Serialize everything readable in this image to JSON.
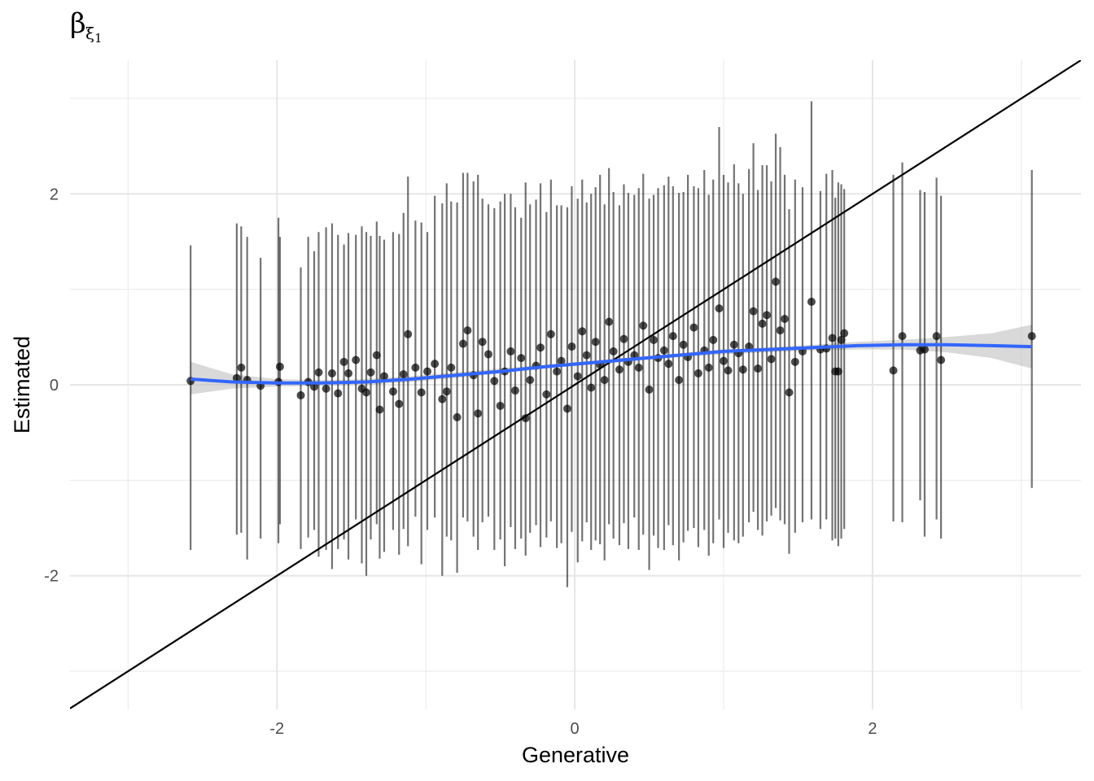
{
  "chart_data": {
    "type": "scatter",
    "title": "β",
    "title_subscript": "ξ",
    "title_subsubscript": "1",
    "xlabel": "Generative",
    "ylabel": "Estimated",
    "xlim": [
      -3.39,
      3.4
    ],
    "ylim": [
      -3.4,
      3.4
    ],
    "x_ticks": [
      -2,
      0,
      2
    ],
    "x_tick_labels": [
      "-2",
      "0",
      "2"
    ],
    "y_ticks": [
      -2,
      0,
      2
    ],
    "y_tick_labels": [
      "-2",
      "0",
      "2"
    ],
    "grid": true,
    "identity_line": {
      "slope": 1,
      "intercept": 0,
      "color": "#000000"
    },
    "smooth": {
      "color": "#3366FF",
      "band_color": "#bfbfbf",
      "x": [
        -2.58,
        -2.3,
        -2.0,
        -1.7,
        -1.4,
        -1.1,
        -0.8,
        -0.5,
        -0.2,
        0.1,
        0.4,
        0.7,
        1.0,
        1.3,
        1.6,
        1.9,
        2.2,
        2.5,
        2.8,
        3.07
      ],
      "y": [
        0.06,
        0.03,
        0.02,
        0.02,
        0.03,
        0.06,
        0.1,
        0.14,
        0.19,
        0.23,
        0.27,
        0.31,
        0.35,
        0.37,
        0.39,
        0.41,
        0.42,
        0.42,
        0.41,
        0.4
      ],
      "lower": [
        -0.1,
        -0.04,
        -0.02,
        -0.01,
        0.0,
        0.03,
        0.07,
        0.12,
        0.17,
        0.21,
        0.25,
        0.29,
        0.32,
        0.34,
        0.36,
        0.37,
        0.37,
        0.34,
        0.28,
        0.17
      ],
      "upper": [
        0.24,
        0.11,
        0.06,
        0.05,
        0.06,
        0.09,
        0.13,
        0.17,
        0.21,
        0.25,
        0.29,
        0.33,
        0.37,
        0.39,
        0.42,
        0.45,
        0.47,
        0.5,
        0.54,
        0.63
      ]
    },
    "series": [
      {
        "color": "#000000",
        "points": [
          {
            "x": -2.58,
            "y": 0.04,
            "lo": -1.73,
            "hi": 1.46
          },
          {
            "x": -2.27,
            "y": 0.07,
            "lo": -1.57,
            "hi": 1.69
          },
          {
            "x": -2.24,
            "y": 0.18,
            "lo": -1.55,
            "hi": 1.66
          },
          {
            "x": -2.2,
            "y": 0.05,
            "lo": -1.83,
            "hi": 1.55
          },
          {
            "x": -2.11,
            "y": -0.01,
            "lo": -1.61,
            "hi": 1.33
          },
          {
            "x": -1.99,
            "y": 0.03,
            "lo": -1.66,
            "hi": 1.75
          },
          {
            "x": -1.98,
            "y": 0.19,
            "lo": -1.46,
            "hi": 1.55
          },
          {
            "x": -1.84,
            "y": -0.11,
            "lo": -1.72,
            "hi": 1.23
          },
          {
            "x": -1.79,
            "y": 0.03,
            "lo": -1.6,
            "hi": 1.55
          },
          {
            "x": -1.75,
            "y": -0.02,
            "lo": -1.52,
            "hi": 1.4
          },
          {
            "x": -1.72,
            "y": 0.13,
            "lo": -1.8,
            "hi": 1.6
          },
          {
            "x": -1.67,
            "y": -0.04,
            "lo": -1.73,
            "hi": 1.65
          },
          {
            "x": -1.63,
            "y": 0.12,
            "lo": -1.93,
            "hi": 1.69
          },
          {
            "x": -1.59,
            "y": -0.09,
            "lo": -1.72,
            "hi": 1.57
          },
          {
            "x": -1.55,
            "y": 0.24,
            "lo": -1.62,
            "hi": 1.47
          },
          {
            "x": -1.52,
            "y": 0.12,
            "lo": -1.83,
            "hi": 1.59
          },
          {
            "x": -1.47,
            "y": 0.26,
            "lo": -1.41,
            "hi": 1.57
          },
          {
            "x": -1.43,
            "y": -0.04,
            "lo": -1.87,
            "hi": 1.66
          },
          {
            "x": -1.4,
            "y": -0.08,
            "lo": -2.0,
            "hi": 1.6
          },
          {
            "x": -1.37,
            "y": 0.13,
            "lo": -1.62,
            "hi": 1.56
          },
          {
            "x": -1.33,
            "y": 0.31,
            "lo": -1.46,
            "hi": 1.71
          },
          {
            "x": -1.31,
            "y": -0.26,
            "lo": -1.82,
            "hi": 1.56
          },
          {
            "x": -1.28,
            "y": 0.09,
            "lo": -1.75,
            "hi": 1.52
          },
          {
            "x": -1.22,
            "y": -0.07,
            "lo": -1.52,
            "hi": 1.6
          },
          {
            "x": -1.18,
            "y": -0.2,
            "lo": -1.78,
            "hi": 1.58
          },
          {
            "x": -1.15,
            "y": 0.11,
            "lo": -1.51,
            "hi": 1.8
          },
          {
            "x": -1.12,
            "y": 0.53,
            "lo": -1.69,
            "hi": 2.18
          },
          {
            "x": -1.07,
            "y": 0.18,
            "lo": -1.38,
            "hi": 1.72
          },
          {
            "x": -1.03,
            "y": -0.08,
            "lo": -1.88,
            "hi": 1.7
          },
          {
            "x": -0.99,
            "y": 0.14,
            "lo": -1.52,
            "hi": 1.6
          },
          {
            "x": -0.94,
            "y": 0.22,
            "lo": -1.39,
            "hi": 1.98
          },
          {
            "x": -0.89,
            "y": -0.15,
            "lo": -2.0,
            "hi": 1.9
          },
          {
            "x": -0.86,
            "y": -0.07,
            "lo": -1.59,
            "hi": 2.11
          },
          {
            "x": -0.83,
            "y": 0.18,
            "lo": -1.63,
            "hi": 1.92
          },
          {
            "x": -0.79,
            "y": -0.34,
            "lo": -1.97,
            "hi": 1.91
          },
          {
            "x": -0.75,
            "y": 0.43,
            "lo": -1.39,
            "hi": 2.22
          },
          {
            "x": -0.72,
            "y": 0.57,
            "lo": -1.43,
            "hi": 2.22
          },
          {
            "x": -0.68,
            "y": 0.1,
            "lo": -1.59,
            "hi": 2.13
          },
          {
            "x": -0.65,
            "y": -0.3,
            "lo": -1.73,
            "hi": 2.2
          },
          {
            "x": -0.62,
            "y": 0.45,
            "lo": -1.44,
            "hi": 1.95
          },
          {
            "x": -0.58,
            "y": 0.32,
            "lo": -1.38,
            "hi": 1.89
          },
          {
            "x": -0.54,
            "y": 0.04,
            "lo": -1.73,
            "hi": 1.85
          },
          {
            "x": -0.5,
            "y": -0.22,
            "lo": -1.62,
            "hi": 1.92
          },
          {
            "x": -0.47,
            "y": 0.14,
            "lo": -1.9,
            "hi": 2.0
          },
          {
            "x": -0.43,
            "y": 0.35,
            "lo": -1.49,
            "hi": 2.0
          },
          {
            "x": -0.4,
            "y": -0.06,
            "lo": -1.72,
            "hi": 1.86
          },
          {
            "x": -0.36,
            "y": 0.28,
            "lo": -1.61,
            "hi": 1.75
          },
          {
            "x": -0.33,
            "y": -0.35,
            "lo": -1.79,
            "hi": 2.12
          },
          {
            "x": -0.3,
            "y": 0.05,
            "lo": -1.55,
            "hi": 1.89
          },
          {
            "x": -0.26,
            "y": 0.2,
            "lo": -1.47,
            "hi": 1.94
          },
          {
            "x": -0.23,
            "y": 0.39,
            "lo": -1.7,
            "hi": 2.11
          },
          {
            "x": -0.19,
            "y": -0.1,
            "lo": -1.6,
            "hi": 1.81
          },
          {
            "x": -0.16,
            "y": 0.53,
            "lo": -1.43,
            "hi": 2.15
          },
          {
            "x": -0.12,
            "y": 0.14,
            "lo": -1.71,
            "hi": 1.88
          },
          {
            "x": -0.09,
            "y": 0.25,
            "lo": -1.66,
            "hi": 1.88
          },
          {
            "x": -0.05,
            "y": -0.25,
            "lo": -2.12,
            "hi": 1.86
          },
          {
            "x": -0.02,
            "y": 0.4,
            "lo": -1.54,
            "hi": 2.08
          },
          {
            "x": 0.02,
            "y": 0.09,
            "lo": -1.86,
            "hi": 1.95
          },
          {
            "x": 0.05,
            "y": 0.56,
            "lo": -1.64,
            "hi": 2.15
          },
          {
            "x": 0.08,
            "y": 0.31,
            "lo": -1.44,
            "hi": 1.91
          },
          {
            "x": 0.11,
            "y": -0.03,
            "lo": -1.73,
            "hi": 2.0
          },
          {
            "x": 0.14,
            "y": 0.45,
            "lo": -1.63,
            "hi": 2.07
          },
          {
            "x": 0.17,
            "y": 0.21,
            "lo": -1.67,
            "hi": 2.2
          },
          {
            "x": 0.2,
            "y": 0.05,
            "lo": -1.84,
            "hi": 1.89
          },
          {
            "x": 0.23,
            "y": 0.66,
            "lo": -1.46,
            "hi": 2.27
          },
          {
            "x": 0.26,
            "y": 0.35,
            "lo": -1.61,
            "hi": 2.02
          },
          {
            "x": 0.3,
            "y": 0.16,
            "lo": -1.68,
            "hi": 1.88
          },
          {
            "x": 0.33,
            "y": 0.48,
            "lo": -1.45,
            "hi": 2.1
          },
          {
            "x": 0.36,
            "y": 0.24,
            "lo": -1.72,
            "hi": 2.01
          },
          {
            "x": 0.4,
            "y": 0.31,
            "lo": -1.39,
            "hi": 1.99
          },
          {
            "x": 0.43,
            "y": 0.18,
            "lo": -1.73,
            "hi": 2.06
          },
          {
            "x": 0.46,
            "y": 0.62,
            "lo": -1.57,
            "hi": 2.21
          },
          {
            "x": 0.5,
            "y": -0.05,
            "lo": -1.94,
            "hi": 1.95
          },
          {
            "x": 0.53,
            "y": 0.47,
            "lo": -1.58,
            "hi": 1.99
          },
          {
            "x": 0.56,
            "y": 0.28,
            "lo": -1.71,
            "hi": 2.06
          },
          {
            "x": 0.6,
            "y": 0.36,
            "lo": -1.73,
            "hi": 2.09
          },
          {
            "x": 0.63,
            "y": 0.22,
            "lo": -1.47,
            "hi": 2.18
          },
          {
            "x": 0.66,
            "y": 0.51,
            "lo": -1.68,
            "hi": 2.08
          },
          {
            "x": 0.7,
            "y": 0.05,
            "lo": -1.84,
            "hi": 2.01
          },
          {
            "x": 0.73,
            "y": 0.42,
            "lo": -1.65,
            "hi": 2.02
          },
          {
            "x": 0.76,
            "y": 0.29,
            "lo": -1.53,
            "hi": 2.2
          },
          {
            "x": 0.8,
            "y": 0.6,
            "lo": -1.5,
            "hi": 2.08
          },
          {
            "x": 0.83,
            "y": 0.12,
            "lo": -1.7,
            "hi": 2.06
          },
          {
            "x": 0.87,
            "y": 0.36,
            "lo": -1.52,
            "hi": 2.25
          },
          {
            "x": 0.9,
            "y": 0.18,
            "lo": -1.79,
            "hi": 1.99
          },
          {
            "x": 0.93,
            "y": 0.47,
            "lo": -1.66,
            "hi": 2.15
          },
          {
            "x": 0.97,
            "y": 0.8,
            "lo": -1.41,
            "hi": 2.7
          },
          {
            "x": 1.0,
            "y": 0.25,
            "lo": -1.71,
            "hi": 2.2
          },
          {
            "x": 1.03,
            "y": 0.15,
            "lo": -1.55,
            "hi": 2.12
          },
          {
            "x": 1.07,
            "y": 0.42,
            "lo": -1.63,
            "hi": 2.31
          },
          {
            "x": 1.1,
            "y": 0.33,
            "lo": -1.66,
            "hi": 2.11
          },
          {
            "x": 1.13,
            "y": 0.16,
            "lo": -1.59,
            "hi": 2.0
          },
          {
            "x": 1.17,
            "y": 0.4,
            "lo": -1.44,
            "hi": 2.26
          },
          {
            "x": 1.2,
            "y": 0.77,
            "lo": -1.33,
            "hi": 2.53
          },
          {
            "x": 1.23,
            "y": 0.17,
            "lo": -1.52,
            "hi": 2.04
          },
          {
            "x": 1.26,
            "y": 0.64,
            "lo": -1.58,
            "hi": 2.3
          },
          {
            "x": 1.29,
            "y": 0.73,
            "lo": -1.43,
            "hi": 2.3
          },
          {
            "x": 1.32,
            "y": 0.27,
            "lo": -1.37,
            "hi": 2.13
          },
          {
            "x": 1.35,
            "y": 1.08,
            "lo": -1.29,
            "hi": 2.63
          },
          {
            "x": 1.38,
            "y": 0.57,
            "lo": -1.42,
            "hi": 2.49
          },
          {
            "x": 1.41,
            "y": 0.69,
            "lo": -1.46,
            "hi": 2.2
          },
          {
            "x": 1.44,
            "y": -0.08,
            "lo": -1.77,
            "hi": 1.84
          },
          {
            "x": 1.48,
            "y": 0.24,
            "lo": -1.55,
            "hi": 2.15
          },
          {
            "x": 1.53,
            "y": 0.35,
            "lo": -1.44,
            "hi": 2.07
          },
          {
            "x": 1.59,
            "y": 0.87,
            "lo": -1.41,
            "hi": 2.97
          },
          {
            "x": 1.65,
            "y": 0.37,
            "lo": -1.51,
            "hi": 2.03
          },
          {
            "x": 1.69,
            "y": 0.38,
            "lo": -1.41,
            "hi": 2.21
          },
          {
            "x": 1.73,
            "y": 0.49,
            "lo": -1.63,
            "hi": 2.25
          },
          {
            "x": 1.75,
            "y": 0.14,
            "lo": -1.61,
            "hi": 1.96
          },
          {
            "x": 1.77,
            "y": 0.14,
            "lo": -1.69,
            "hi": 2.12
          },
          {
            "x": 1.79,
            "y": 0.47,
            "lo": -1.61,
            "hi": 2.1
          },
          {
            "x": 1.81,
            "y": 0.54,
            "lo": -1.51,
            "hi": 2.05
          },
          {
            "x": 2.14,
            "y": 0.15,
            "lo": -1.43,
            "hi": 2.2
          },
          {
            "x": 2.2,
            "y": 0.51,
            "lo": -1.44,
            "hi": 2.33
          },
          {
            "x": 2.32,
            "y": 0.36,
            "lo": -1.21,
            "hi": 2.04
          },
          {
            "x": 2.35,
            "y": 0.37,
            "lo": -1.59,
            "hi": 2.02
          },
          {
            "x": 2.43,
            "y": 0.51,
            "lo": -1.41,
            "hi": 2.17
          },
          {
            "x": 2.46,
            "y": 0.26,
            "lo": -1.61,
            "hi": 1.98
          },
          {
            "x": 3.07,
            "y": 0.51,
            "lo": -1.08,
            "hi": 2.25
          }
        ]
      }
    ]
  }
}
